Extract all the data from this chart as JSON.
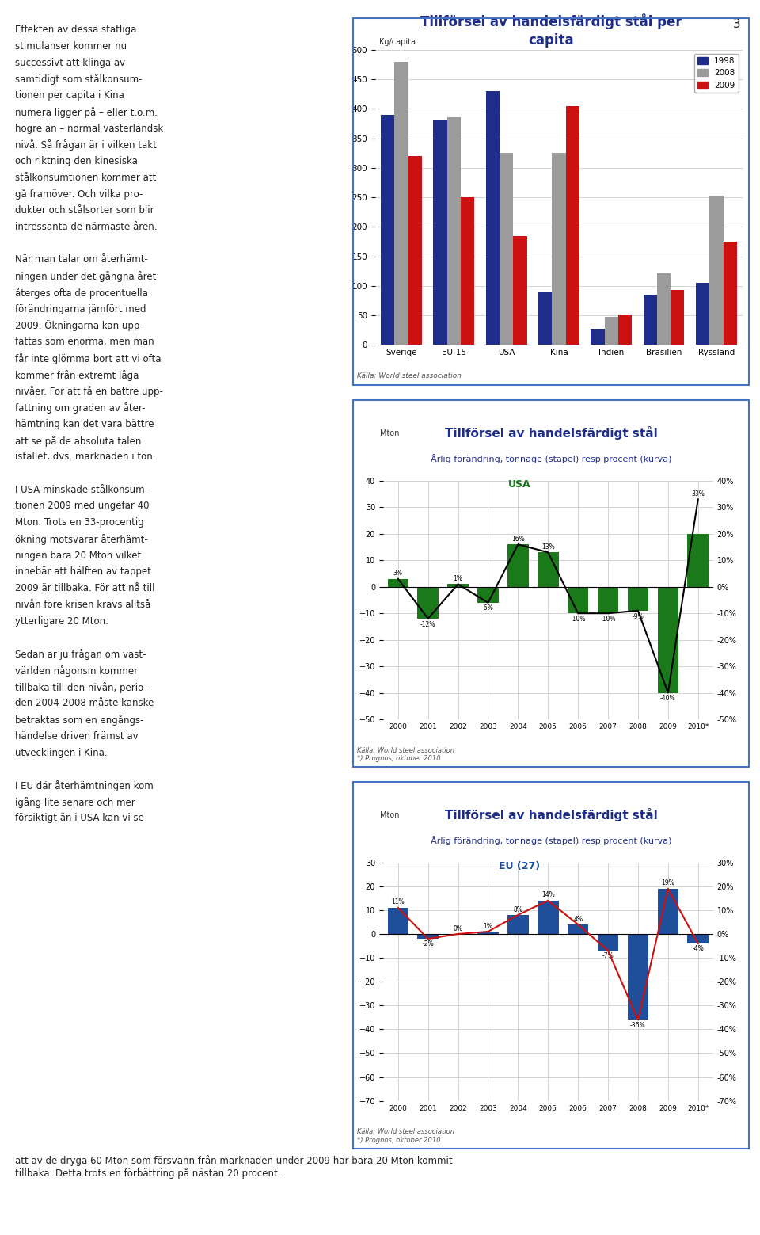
{
  "page_bg": "#FFFFFF",
  "page_number": "3",
  "text_color": "#222222",
  "title_color": "#1F2D8A",
  "border_color": "#4472C4",
  "left_text": [
    "Effekten av dessa statliga",
    "stimulanser kommer nu",
    "successivt att klinga av",
    "samtidigt som stålkonsum-",
    "tionen per capita i Kina",
    "numera ligger på – eller t.o.m.",
    "högre än – normal västerländsk",
    "nivå. Så frågan är i vilken takt",
    "och riktning den kinesiska",
    "stålkonsumtionen kommer att",
    "gå framöver. Och vilka pro-",
    "dukter och stålsorter som blir",
    "intressanta de närmaste åren.",
    "",
    "När man talar om återhämt-",
    "ningen under det gångna året",
    "återges ofta de procentuella",
    "förändringarna jämfört med",
    "2009. Ökningarna kan upp-",
    "fattas som enorma, men man",
    "får inte glömma bort att vi ofta",
    "kommer från extremt låga",
    "nivåer. För att få en bättre upp-",
    "fattning om graden av åter-",
    "hämtning kan det vara bättre",
    "att se på de absoluta talen",
    "istället, dvs. marknaden i ton.",
    "",
    "I USA minskade stålkonsum-",
    "tionen 2009 med ungefär 40",
    "Mton. Trots en 33-procentig",
    "ökning motsvarar återhämt-",
    "ningen bara 20 Mton vilket",
    "innebär att hälften av tappet",
    "2009 är tillbaka. För att nå till",
    "nivån före krisen krävs alltså",
    "ytterligare 20 Mton.",
    "",
    "Sedan är ju frågan om väst-",
    "världen någonsin kommer",
    "tillbaka till den nivån, perio-",
    "den 2004-2008 måste kanske",
    "betraktas som en engångs-",
    "händelse driven främst av",
    "utvecklingen i Kina.",
    "",
    "I EU där återhämtningen kom",
    "igång lite senare och mer",
    "försiktigt än i USA kan vi se"
  ],
  "bottom_text": "att av de dryga 60 Mton som försvann från marknaden under 2009 har bara 20 Mton kommit\ntillbaka. Detta trots en förbättring på nästan 20 procent.",
  "chart1": {
    "title": "Tillförsel av handelsfärdigt stål per\ncapita",
    "ylabel": "Kg/capita",
    "categories": [
      "Sverige",
      "EU-15",
      "USA",
      "Kina",
      "Indien",
      "Brasilien",
      "Ryssland"
    ],
    "series_1998": [
      390,
      380,
      430,
      90,
      28,
      85,
      105
    ],
    "series_2008": [
      480,
      385,
      325,
      325,
      48,
      122,
      253
    ],
    "series_2009": [
      320,
      250,
      185,
      405,
      50,
      93,
      175
    ],
    "color_1998": "#1F2D8A",
    "color_2008": "#9B9B9B",
    "color_2009": "#CC1111",
    "ylim": [
      0,
      500
    ],
    "yticks": [
      0,
      50,
      100,
      150,
      200,
      250,
      300,
      350,
      400,
      450,
      500
    ],
    "source": "Källa: World steel association"
  },
  "chart2": {
    "title": "Tillförsel av handelsfärdigt stål",
    "subtitle": "Årlig förändring, tonnage (stapel) resp procent (kurva)",
    "region_label": "USA",
    "ylabel": "Mton",
    "years": [
      "2000",
      "2001",
      "2002",
      "2003",
      "2004",
      "2005",
      "2006",
      "2007",
      "2008",
      "2009",
      "2010*"
    ],
    "bar_values": [
      3,
      -12,
      1,
      -6,
      16,
      13,
      -10,
      -10,
      -9,
      -40,
      20
    ],
    "pct_values": [
      3,
      -12,
      1,
      -6,
      16,
      13,
      -10,
      -10,
      -9,
      -40,
      33
    ],
    "pct_labels": [
      "3%",
      "-12%",
      "1%",
      "-6%",
      "16%",
      "13%",
      "-10%",
      "-10%",
      "-9%",
      "-40%",
      "33%"
    ],
    "bar_color": "#1A7A1A",
    "line_color": "#000000",
    "ylim_bar": [
      -50,
      40
    ],
    "ylim_pct": [
      -50,
      40
    ],
    "yticks_bar": [
      -50,
      -40,
      -30,
      -20,
      -10,
      0,
      10,
      20,
      30,
      40
    ],
    "yticks_pct_vals": [
      -50,
      -40,
      -30,
      -20,
      -10,
      0,
      10,
      20,
      30,
      40
    ],
    "yticks_pct_labels": [
      "-50%",
      "-40%",
      "-30%",
      "-20%",
      "-10%",
      "0%",
      "10%",
      "20%",
      "30%",
      "40%"
    ],
    "source": "Källa: World steel association\n*) Prognos, oktober 2010"
  },
  "chart3": {
    "title": "Tillförsel av handelsfärdigt stål",
    "subtitle": "Årlig förändring, tonnage (stapel) resp procent (kurva)",
    "region_label": "EU (27)",
    "ylabel": "Mton",
    "years": [
      "2000",
      "2001",
      "2002",
      "2003",
      "2004",
      "2005",
      "2006",
      "2007",
      "2008",
      "2009",
      "2010*"
    ],
    "bar_values": [
      11,
      -2,
      0,
      1,
      8,
      14,
      4,
      -7,
      -36,
      19,
      -4
    ],
    "pct_values": [
      11,
      -2,
      0,
      1,
      8,
      14,
      4,
      -7,
      -36,
      19,
      -4
    ],
    "pct_labels": [
      "11%",
      "-2%",
      "0%",
      "1%",
      "8%",
      "14%",
      "4%",
      "-7%",
      "-36%",
      "19%",
      "-4%"
    ],
    "bar_color": "#1F4E9A",
    "line_color": "#CC1111",
    "ylim_bar": [
      -70,
      30
    ],
    "ylim_pct": [
      -70,
      30
    ],
    "yticks_bar": [
      -70,
      -60,
      -50,
      -40,
      -30,
      -20,
      -10,
      0,
      10,
      20,
      30
    ],
    "yticks_pct_vals": [
      -70,
      -60,
      -50,
      -40,
      -30,
      -20,
      -10,
      0,
      10,
      20,
      30
    ],
    "yticks_pct_labels": [
      "-70%",
      "-60%",
      "-50%",
      "-40%",
      "-30%",
      "-20%",
      "-10%",
      "0%",
      "10%",
      "20%",
      "30%"
    ],
    "source": "Källa: World steel association\n*) Prognos, oktober 2010"
  }
}
